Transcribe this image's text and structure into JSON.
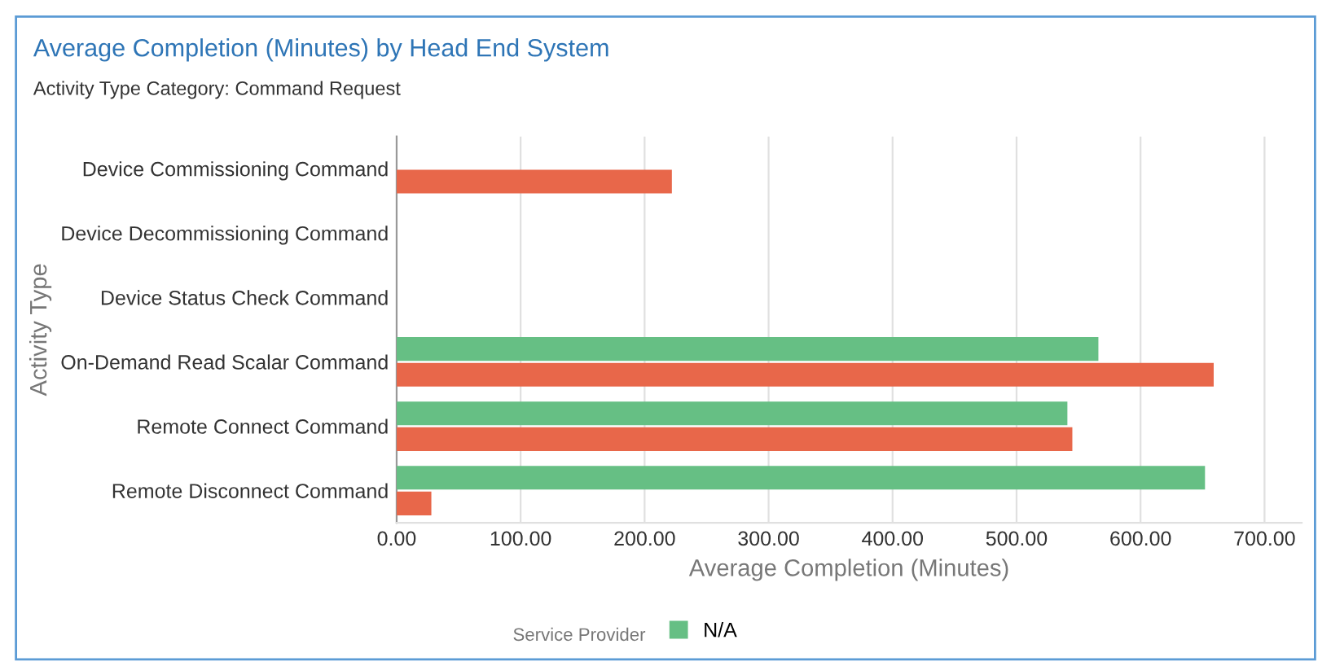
{
  "chart_data": {
    "type": "bar",
    "orientation": "horizontal",
    "title": "Average Completion (Minutes) by Head End System",
    "subtitle": "Activity Type Category: Command Request",
    "xlabel": "Average Completion (Minutes)",
    "ylabel": "Activity Type",
    "legend_title": "Service Provider",
    "categories": [
      "Device Commissioning Command",
      "Device Decommissioning Command",
      "Device Status Check Command",
      "On-Demand Read Scalar Command",
      "Remote Connect Command",
      "Remote Disconnect Command"
    ],
    "series": [
      {
        "name": "N/A",
        "color": "#66bf84",
        "values": [
          null,
          null,
          null,
          566,
          541,
          652
        ]
      },
      {
        "color": "#e8674a",
        "values": [
          222,
          null,
          null,
          659,
          545,
          28
        ]
      }
    ],
    "xlim": [
      0,
      730
    ],
    "xticks": [
      {
        "value": 0,
        "label": "0.00"
      },
      {
        "value": 100,
        "label": "100.00"
      },
      {
        "value": 200,
        "label": "200.00"
      },
      {
        "value": 300,
        "label": "300.00"
      },
      {
        "value": 400,
        "label": "400.00"
      },
      {
        "value": 500,
        "label": "500.00"
      },
      {
        "value": 600,
        "label": "600.00"
      },
      {
        "value": 700,
        "label": "700.00"
      }
    ],
    "grid": "x",
    "legend": "bottom"
  }
}
